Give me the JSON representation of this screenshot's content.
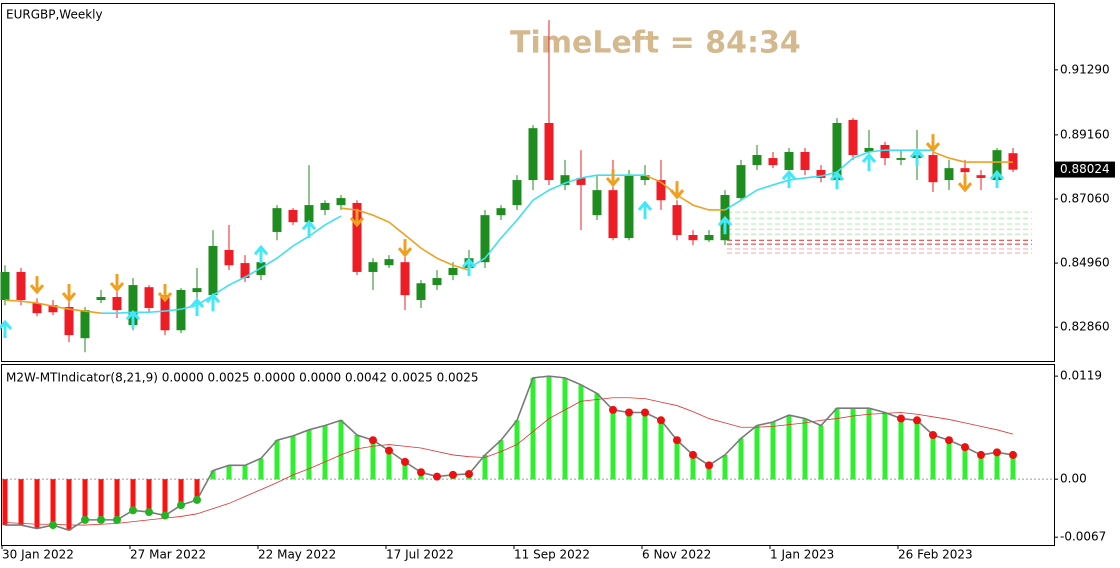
{
  "chart_data": [
    {
      "type": "candlestick",
      "title": "EURGBP,Weekly",
      "annotation": "TimeLeft = 84:34",
      "categories": [
        "30 Jan 2022",
        null,
        null,
        null,
        null,
        null,
        null,
        null,
        "27 Mar 2022",
        null,
        null,
        null,
        null,
        null,
        null,
        null,
        "22 May 2022",
        null,
        null,
        null,
        null,
        null,
        null,
        null,
        "17 Jul 2022",
        null,
        null,
        null,
        null,
        null,
        null,
        null,
        "11 Sep 2022",
        null,
        null,
        null,
        null,
        null,
        null,
        null,
        "6 Nov 2022",
        null,
        null,
        null,
        null,
        null,
        null,
        null,
        "1 Jan 2023",
        null,
        null,
        null,
        null,
        null,
        null,
        null,
        "26 Feb 2023",
        null,
        null,
        null,
        null,
        null,
        null,
        null
      ],
      "open": [
        0.8375,
        0.8467,
        0.8365,
        0.8358,
        0.8352,
        0.825,
        0.8375,
        0.8385,
        0.8293,
        0.8417,
        0.8391,
        0.8276,
        0.8401,
        0.8391,
        0.8539,
        0.8496,
        0.8457,
        0.8598,
        0.867,
        0.863,
        0.867,
        0.8686,
        0.8693,
        0.8467,
        0.8489,
        0.8499,
        0.8375,
        0.8424,
        0.8457,
        0.848,
        0.8499,
        0.8653,
        0.8686,
        0.8768,
        0.8955,
        0.8752,
        0.8775,
        0.8653,
        0.8735,
        0.8578,
        0.8768,
        0.8768,
        0.8686,
        0.8588,
        0.8571,
        0.8571,
        0.8709,
        0.8817,
        0.884,
        0.8801,
        0.886,
        0.8801,
        0.8768,
        0.8965,
        0.886,
        0.8883,
        0.8834,
        0.884,
        0.885,
        0.8768,
        0.8807,
        0.8784,
        0.8768,
        0.8856
      ],
      "high": [
        0.8489,
        0.848,
        0.8381,
        0.8375,
        0.8375,
        0.8352,
        0.8408,
        0.844,
        0.8447,
        0.8424,
        0.8408,
        0.8414,
        0.848,
        0.8604,
        0.8621,
        0.8522,
        0.8539,
        0.8686,
        0.8676,
        0.8817,
        0.8702,
        0.8719,
        0.8702,
        0.8512,
        0.8522,
        0.8571,
        0.844,
        0.8473,
        0.8499,
        0.8539,
        0.867,
        0.8686,
        0.8784,
        0.8948,
        0.9292,
        0.8834,
        0.8866,
        0.8784,
        0.8834,
        0.8801,
        0.8817,
        0.8834,
        0.8702,
        0.8604,
        0.8604,
        0.8735,
        0.8834,
        0.8883,
        0.886,
        0.8873,
        0.8873,
        0.8817,
        0.8971,
        0.8971,
        0.8932,
        0.8893,
        0.8866,
        0.8932,
        0.8915,
        0.8834,
        0.8834,
        0.8801,
        0.8873,
        0.8873
      ],
      "low": [
        0.8358,
        0.8358,
        0.8322,
        0.8326,
        0.8237,
        0.8204,
        0.8365,
        0.8316,
        0.8276,
        0.8335,
        0.826,
        0.8267,
        0.8375,
        0.8375,
        0.8473,
        0.8434,
        0.844,
        0.8571,
        0.8621,
        0.8611,
        0.8653,
        0.867,
        0.8457,
        0.8408,
        0.848,
        0.8342,
        0.8349,
        0.8408,
        0.844,
        0.8457,
        0.848,
        0.8637,
        0.867,
        0.8735,
        0.8752,
        0.8735,
        0.8604,
        0.8637,
        0.8571,
        0.8571,
        0.8752,
        0.867,
        0.8571,
        0.8555,
        0.8565,
        0.8555,
        0.8702,
        0.8801,
        0.8807,
        0.8784,
        0.8784,
        0.8761,
        0.8752,
        0.8834,
        0.8817,
        0.8817,
        0.8817,
        0.8768,
        0.8729,
        0.8735,
        0.8784,
        0.8735,
        0.8761,
        0.8794
      ],
      "close": [
        0.8467,
        0.8375,
        0.8332,
        0.8335,
        0.826,
        0.8342,
        0.8385,
        0.8342,
        0.8424,
        0.8349,
        0.8276,
        0.8408,
        0.8414,
        0.8552,
        0.8489,
        0.8447,
        0.8499,
        0.8676,
        0.863,
        0.8686,
        0.8693,
        0.8709,
        0.8467,
        0.8499,
        0.8509,
        0.8391,
        0.843,
        0.8447,
        0.848,
        0.8512,
        0.8653,
        0.8676,
        0.8768,
        0.8938,
        0.8768,
        0.8784,
        0.8752,
        0.8735,
        0.8578,
        0.8784,
        0.8784,
        0.8702,
        0.8588,
        0.8571,
        0.8588,
        0.8719,
        0.8817,
        0.885,
        0.8817,
        0.886,
        0.8801,
        0.8775,
        0.8955,
        0.885,
        0.8873,
        0.884,
        0.884,
        0.885,
        0.8761,
        0.8807,
        0.8794,
        0.8775,
        0.8866,
        0.8802
      ],
      "up_color": "#1e8c1e",
      "down_color": "#ee1c24",
      "lines": [
        {
          "color": "#f0a020",
          "values": [
            0.8375,
            0.8371,
            0.8365,
            0.8355,
            0.8345,
            0.8339,
            0.8332,
            null,
            null,
            null,
            null,
            null,
            null,
            null,
            null,
            null,
            null,
            null,
            null,
            null,
            null,
            0.8676,
            0.867,
            0.8653,
            0.863,
            0.8588,
            0.8545,
            0.8512,
            0.8489,
            0.8473,
            null,
            null,
            null,
            null,
            null,
            null,
            null,
            null,
            null,
            null,
            0.8784,
            0.8761,
            0.8719,
            0.8686,
            0.867,
            0.867,
            null,
            null,
            null,
            null,
            null,
            null,
            null,
            null,
            null,
            null,
            null,
            null,
            0.886,
            0.884,
            0.8827,
            0.8827,
            0.8827,
            0.8827
          ]
        },
        {
          "color": "#40e0f4",
          "values": [
            null,
            null,
            null,
            null,
            null,
            null,
            0.8332,
            0.8332,
            0.8335,
            0.8335,
            0.8339,
            0.8345,
            0.8358,
            0.8391,
            0.8424,
            0.845,
            0.848,
            0.8512,
            0.8552,
            0.8584,
            0.8621,
            0.865,
            null,
            null,
            null,
            null,
            null,
            null,
            null,
            0.848,
            0.8512,
            0.8578,
            0.8637,
            0.8702,
            0.8735,
            0.8758,
            0.8775,
            0.8784,
            0.8784,
            0.8784,
            0.8784,
            null,
            null,
            null,
            null,
            0.867,
            0.8702,
            0.8735,
            0.8752,
            0.8768,
            0.8775,
            0.8781,
            0.8794,
            0.884,
            0.886,
            0.8866,
            0.8866,
            0.8866,
            0.8866,
            null,
            null,
            null,
            null,
            null
          ]
        }
      ],
      "arrows": [
        {
          "direction": "up",
          "color": "#40e8f8",
          "values": [
            0.8303,
            null,
            null,
            null,
            null,
            null,
            null,
            null,
            0.8335,
            null,
            null,
            null,
            0.8375,
            0.8391,
            null,
            null,
            0.8548,
            null,
            null,
            0.863,
            null,
            null,
            null,
            null,
            null,
            null,
            null,
            null,
            null,
            0.8506,
            null,
            null,
            null,
            null,
            null,
            null,
            null,
            null,
            null,
            null,
            0.8693,
            null,
            null,
            null,
            null,
            0.8643,
            null,
            null,
            null,
            0.8794,
            null,
            null,
            0.8791,
            null,
            0.885,
            null,
            null,
            0.8866,
            null,
            null,
            null,
            null,
            0.8794,
            null
          ]
        },
        {
          "direction": "down",
          "color": "#f0a020",
          "values": [
            null,
            null,
            0.8401,
            null,
            0.8375,
            null,
            null,
            0.8408,
            null,
            null,
            0.8375,
            null,
            null,
            null,
            null,
            null,
            null,
            null,
            null,
            null,
            null,
            null,
            0.8621,
            null,
            null,
            0.8522,
            null,
            null,
            null,
            null,
            null,
            null,
            null,
            null,
            null,
            null,
            null,
            null,
            0.8752,
            null,
            null,
            null,
            0.8712,
            null,
            null,
            null,
            null,
            null,
            null,
            null,
            null,
            null,
            null,
            null,
            null,
            null,
            null,
            null,
            0.8866,
            null,
            0.8735,
            null,
            null,
            null
          ]
        }
      ],
      "levels": [
        {
          "value": 0.8663,
          "color": "#a8eca8"
        },
        {
          "value": 0.8643,
          "color": "#a8eca8"
        },
        {
          "value": 0.8624,
          "color": "#a8eca8"
        },
        {
          "value": 0.8607,
          "color": "#a8eca8"
        },
        {
          "value": 0.8591,
          "color": "#a8eca8"
        },
        {
          "value": 0.8571,
          "color": "#e02828"
        },
        {
          "value": 0.8558,
          "color": "#e02828"
        },
        {
          "value": 0.8542,
          "color": "#f4a8a8"
        },
        {
          "value": 0.8529,
          "color": "#f4a8a8"
        }
      ],
      "ylim": [
        0.8172,
        0.9348
      ],
      "yticks": [
        {
          "value": 0.8286,
          "label": "0.82860"
        },
        {
          "value": 0.8496,
          "label": "0.84960"
        },
        {
          "value": 0.8706,
          "label": "0.87060"
        },
        {
          "value": 0.8916,
          "label": "0.89160"
        },
        {
          "value": 0.9129,
          "label": "0.91290"
        }
      ],
      "last_price": {
        "value": 0.88024,
        "label": "0.88024"
      }
    },
    {
      "type": "bar",
      "title": "M2W-MTIndicator(8,21,9) 0.0000 0.0025 0.0000 0.0000 0.0042 0.0025 0.0025",
      "values": [
        -0.0053,
        -0.0053,
        -0.0057,
        -0.0053,
        -0.0059,
        -0.0047,
        -0.0047,
        -0.0047,
        -0.0036,
        -0.0038,
        -0.0042,
        -0.003,
        -0.0024,
        0.001,
        0.0016,
        0.0016,
        0.0024,
        0.0045,
        0.005,
        0.0057,
        0.0062,
        0.0068,
        0.0051,
        0.0045,
        0.0033,
        0.002,
        0.0008,
        0.0003,
        0.0005,
        0.0006,
        0.0028,
        0.0045,
        0.0068,
        0.0117,
        0.0119,
        0.0117,
        0.0109,
        0.0099,
        0.008,
        0.0077,
        0.0077,
        0.0068,
        0.0045,
        0.0028,
        0.0016,
        0.0028,
        0.0047,
        0.0062,
        0.0066,
        0.0074,
        0.007,
        0.0062,
        0.0082,
        0.0082,
        0.0082,
        0.0077,
        0.007,
        0.0068,
        0.0051,
        0.0045,
        0.0037,
        0.0028,
        0.0031,
        0.0028
      ],
      "up_color": "#2ef02e",
      "down_color": "#ff1010",
      "line_color": "#7a7a7a",
      "dot_colors": [
        null,
        null,
        null,
        "#22b422",
        null,
        "#22b422",
        "#22b422",
        "#22b422",
        "#22b422",
        "#22b422",
        "#22b422",
        "#22b422",
        "#22b422",
        null,
        null,
        null,
        null,
        null,
        null,
        null,
        null,
        null,
        null,
        "#ee1010",
        "#ee1010",
        "#ee1010",
        "#ee1010",
        "#ee1010",
        "#ee1010",
        "#ee1010",
        null,
        null,
        null,
        null,
        null,
        null,
        null,
        null,
        "#ee1010",
        "#ee1010",
        "#ee1010",
        "#ee1010",
        "#ee1010",
        "#ee1010",
        "#ee1010",
        null,
        null,
        null,
        null,
        null,
        null,
        null,
        null,
        null,
        null,
        null,
        "#ee1010",
        "#ee1010",
        "#ee1010",
        "#ee1010",
        "#ee1010",
        "#ee1010",
        "#ee1010",
        "#ee1010"
      ],
      "signal": {
        "color": "#e03030",
        "values": [
          -0.005,
          -0.0051,
          -0.0052,
          -0.0052,
          -0.0053,
          -0.0053,
          -0.0052,
          -0.0051,
          -0.0049,
          -0.0047,
          -0.0045,
          -0.0043,
          -0.004,
          -0.0034,
          -0.0028,
          -0.002,
          -0.0012,
          -0.0004,
          0.0005,
          0.0012,
          0.002,
          0.0028,
          0.0035,
          0.0038,
          0.004,
          0.0038,
          0.0036,
          0.0032,
          0.0028,
          0.0026,
          0.0025,
          0.0032,
          0.004,
          0.0055,
          0.007,
          0.008,
          0.009,
          0.0092,
          0.0094,
          0.0094,
          0.0093,
          0.0089,
          0.0085,
          0.0078,
          0.007,
          0.0065,
          0.006,
          0.006,
          0.0061,
          0.0063,
          0.0065,
          0.0068,
          0.007,
          0.0073,
          0.0075,
          0.0076,
          0.0077,
          0.0075,
          0.0072,
          0.0069,
          0.0065,
          0.0061,
          0.0057,
          0.0052
        ]
      },
      "ylim": [
        -0.0076,
        0.0133
      ],
      "yticks": [
        -0.0067,
        {
          "value": 0,
          "label": "0.00"
        },
        0.0119
      ]
    }
  ]
}
